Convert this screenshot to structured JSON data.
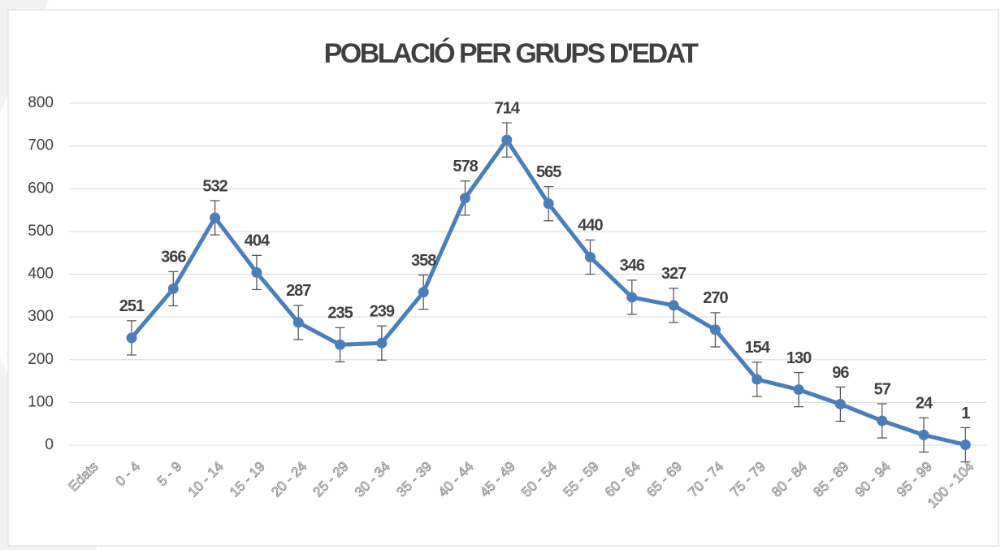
{
  "chart_data": {
    "type": "line",
    "title": "POBLACIÓ PER GRUPS D'EDAT",
    "categories": [
      "Edats",
      "0 - 4",
      "5 - 9",
      "10 - 14",
      "15 - 19",
      "20 - 24",
      "25 - 29",
      "30 - 34",
      "35 - 39",
      "40 - 44",
      "45 - 49",
      "50 - 54",
      "55 - 59",
      "60 - 64",
      "65 - 69",
      "70 - 74",
      "75 - 79",
      "80 - 84",
      "85 - 89",
      "90 - 94",
      "95 - 99",
      "100 - 104"
    ],
    "values": [
      null,
      251,
      366,
      532,
      404,
      287,
      235,
      239,
      358,
      578,
      714,
      565,
      440,
      346,
      327,
      270,
      154,
      130,
      96,
      57,
      24,
      1
    ],
    "errors": [
      null,
      40,
      40,
      40,
      40,
      40,
      40,
      40,
      40,
      40,
      40,
      40,
      40,
      40,
      40,
      40,
      40,
      40,
      40,
      40,
      40,
      40
    ],
    "color": "#4a7ebb",
    "ylim": [
      0,
      800
    ],
    "yticks": [
      0,
      100,
      200,
      300,
      400,
      500,
      600,
      700,
      800
    ],
    "grid": true
  }
}
